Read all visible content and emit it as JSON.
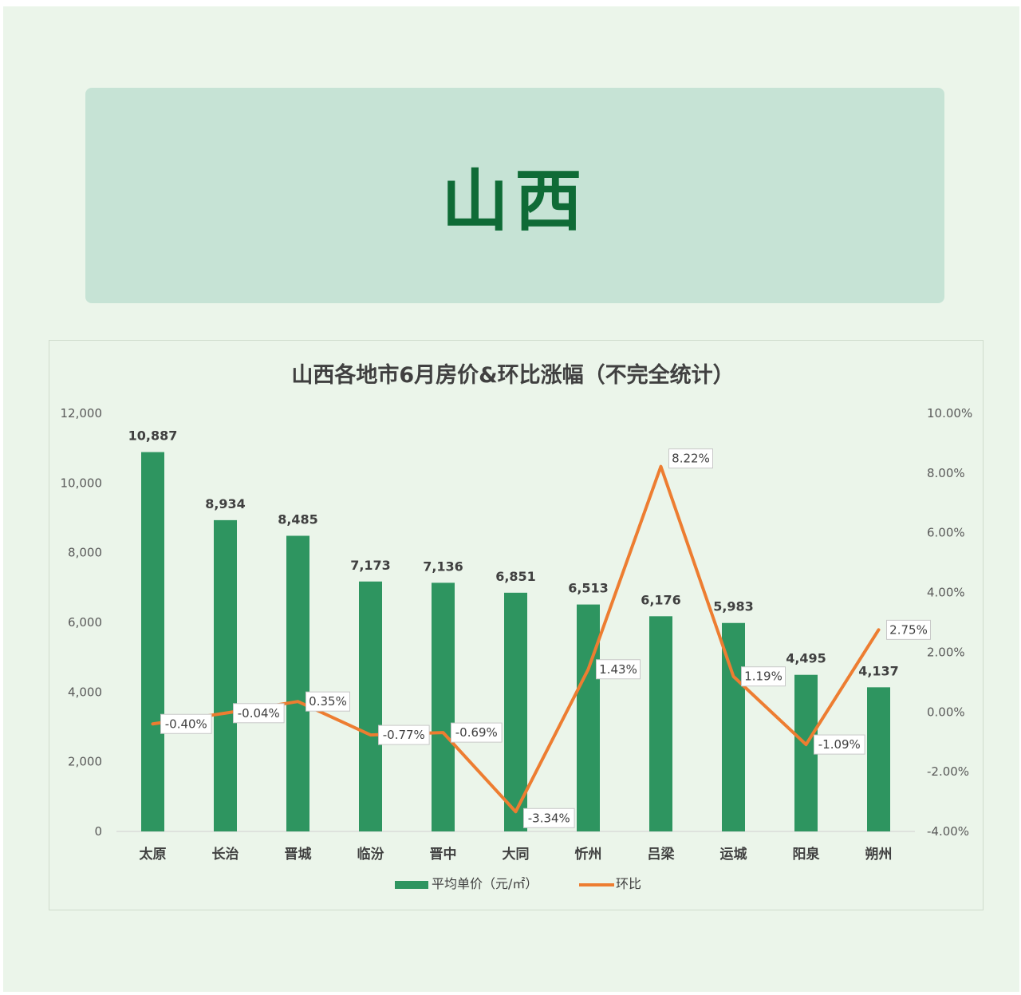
{
  "header": {
    "title": "山西"
  },
  "chart_data": {
    "type": "bar",
    "title": "山西各地市6月房价&环比涨幅（不完全统计）",
    "categories": [
      "太原",
      "长治",
      "晋城",
      "临汾",
      "晋中",
      "大同",
      "忻州",
      "吕梁",
      "运城",
      "阳泉",
      "朔州"
    ],
    "series": [
      {
        "name": "平均单价（元/㎡）",
        "type": "bar",
        "axis": "left",
        "color": "#2e9560",
        "values": [
          10887,
          8934,
          8485,
          7173,
          7136,
          6851,
          6513,
          6176,
          5983,
          4495,
          4137
        ],
        "labels": [
          "10,887",
          "8,934",
          "8,485",
          "7,173",
          "7,136",
          "6,851",
          "6,513",
          "6,176",
          "5,983",
          "4,495",
          "4,137"
        ]
      },
      {
        "name": "环比",
        "type": "line",
        "axis": "right",
        "color": "#ed7d31",
        "values": [
          -0.4,
          -0.04,
          0.35,
          -0.77,
          -0.69,
          -3.34,
          1.43,
          8.22,
          1.19,
          -1.09,
          2.75
        ],
        "labels": [
          "-0.40%",
          "-0.04%",
          "0.35%",
          "-0.77%",
          "-0.69%",
          "-3.34%",
          "1.43%",
          "8.22%",
          "1.19%",
          "-1.09%",
          "2.75%"
        ]
      }
    ],
    "y_left": {
      "ylim": [
        0,
        12000
      ],
      "ticks": [
        0,
        2000,
        4000,
        6000,
        8000,
        10000,
        12000
      ],
      "tick_labels": [
        "0",
        "2,000",
        "4,000",
        "6,000",
        "8,000",
        "10,000",
        "12,000"
      ]
    },
    "y_right": {
      "ylim": [
        -4,
        10
      ],
      "ticks": [
        -4,
        -2,
        0,
        2,
        4,
        6,
        8,
        10
      ],
      "tick_labels": [
        "-4.00%",
        "-2.00%",
        "0.00%",
        "2.00%",
        "4.00%",
        "6.00%",
        "8.00%",
        "10.00%"
      ]
    },
    "legend": {
      "position": "bottom"
    },
    "grid": false
  }
}
